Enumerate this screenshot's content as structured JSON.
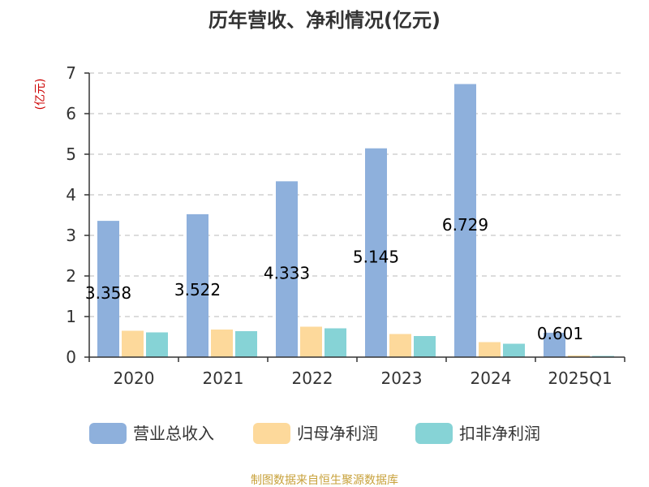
{
  "chart_data": {
    "type": "bar",
    "title": "历年营收、净利情况(亿元)",
    "unit_label": "(亿元)",
    "categories": [
      "2020",
      "2021",
      "2022",
      "2023",
      "2024",
      "2025Q1"
    ],
    "series": [
      {
        "name": "营业总收入",
        "color": "#8eb0dc",
        "values": [
          3.358,
          3.522,
          4.333,
          5.145,
          6.729,
          0.601
        ]
      },
      {
        "name": "归母净利润",
        "color": "#fdd99b",
        "values": [
          0.65,
          0.68,
          0.75,
          0.57,
          0.37,
          0.04
        ]
      },
      {
        "name": "扣非净利润",
        "color": "#86d3d6",
        "values": [
          0.61,
          0.64,
          0.71,
          0.52,
          0.33,
          0.03
        ]
      }
    ],
    "data_labels": [
      "3.358",
      "3.522",
      "4.333",
      "5.145",
      "6.729",
      "0.601"
    ],
    "ylim": [
      0,
      7
    ],
    "yticks": [
      0,
      1,
      2,
      3,
      4,
      5,
      6,
      7
    ],
    "grid": true,
    "legend_position": "bottom"
  },
  "source": "制图数据来自恒生聚源数据库"
}
